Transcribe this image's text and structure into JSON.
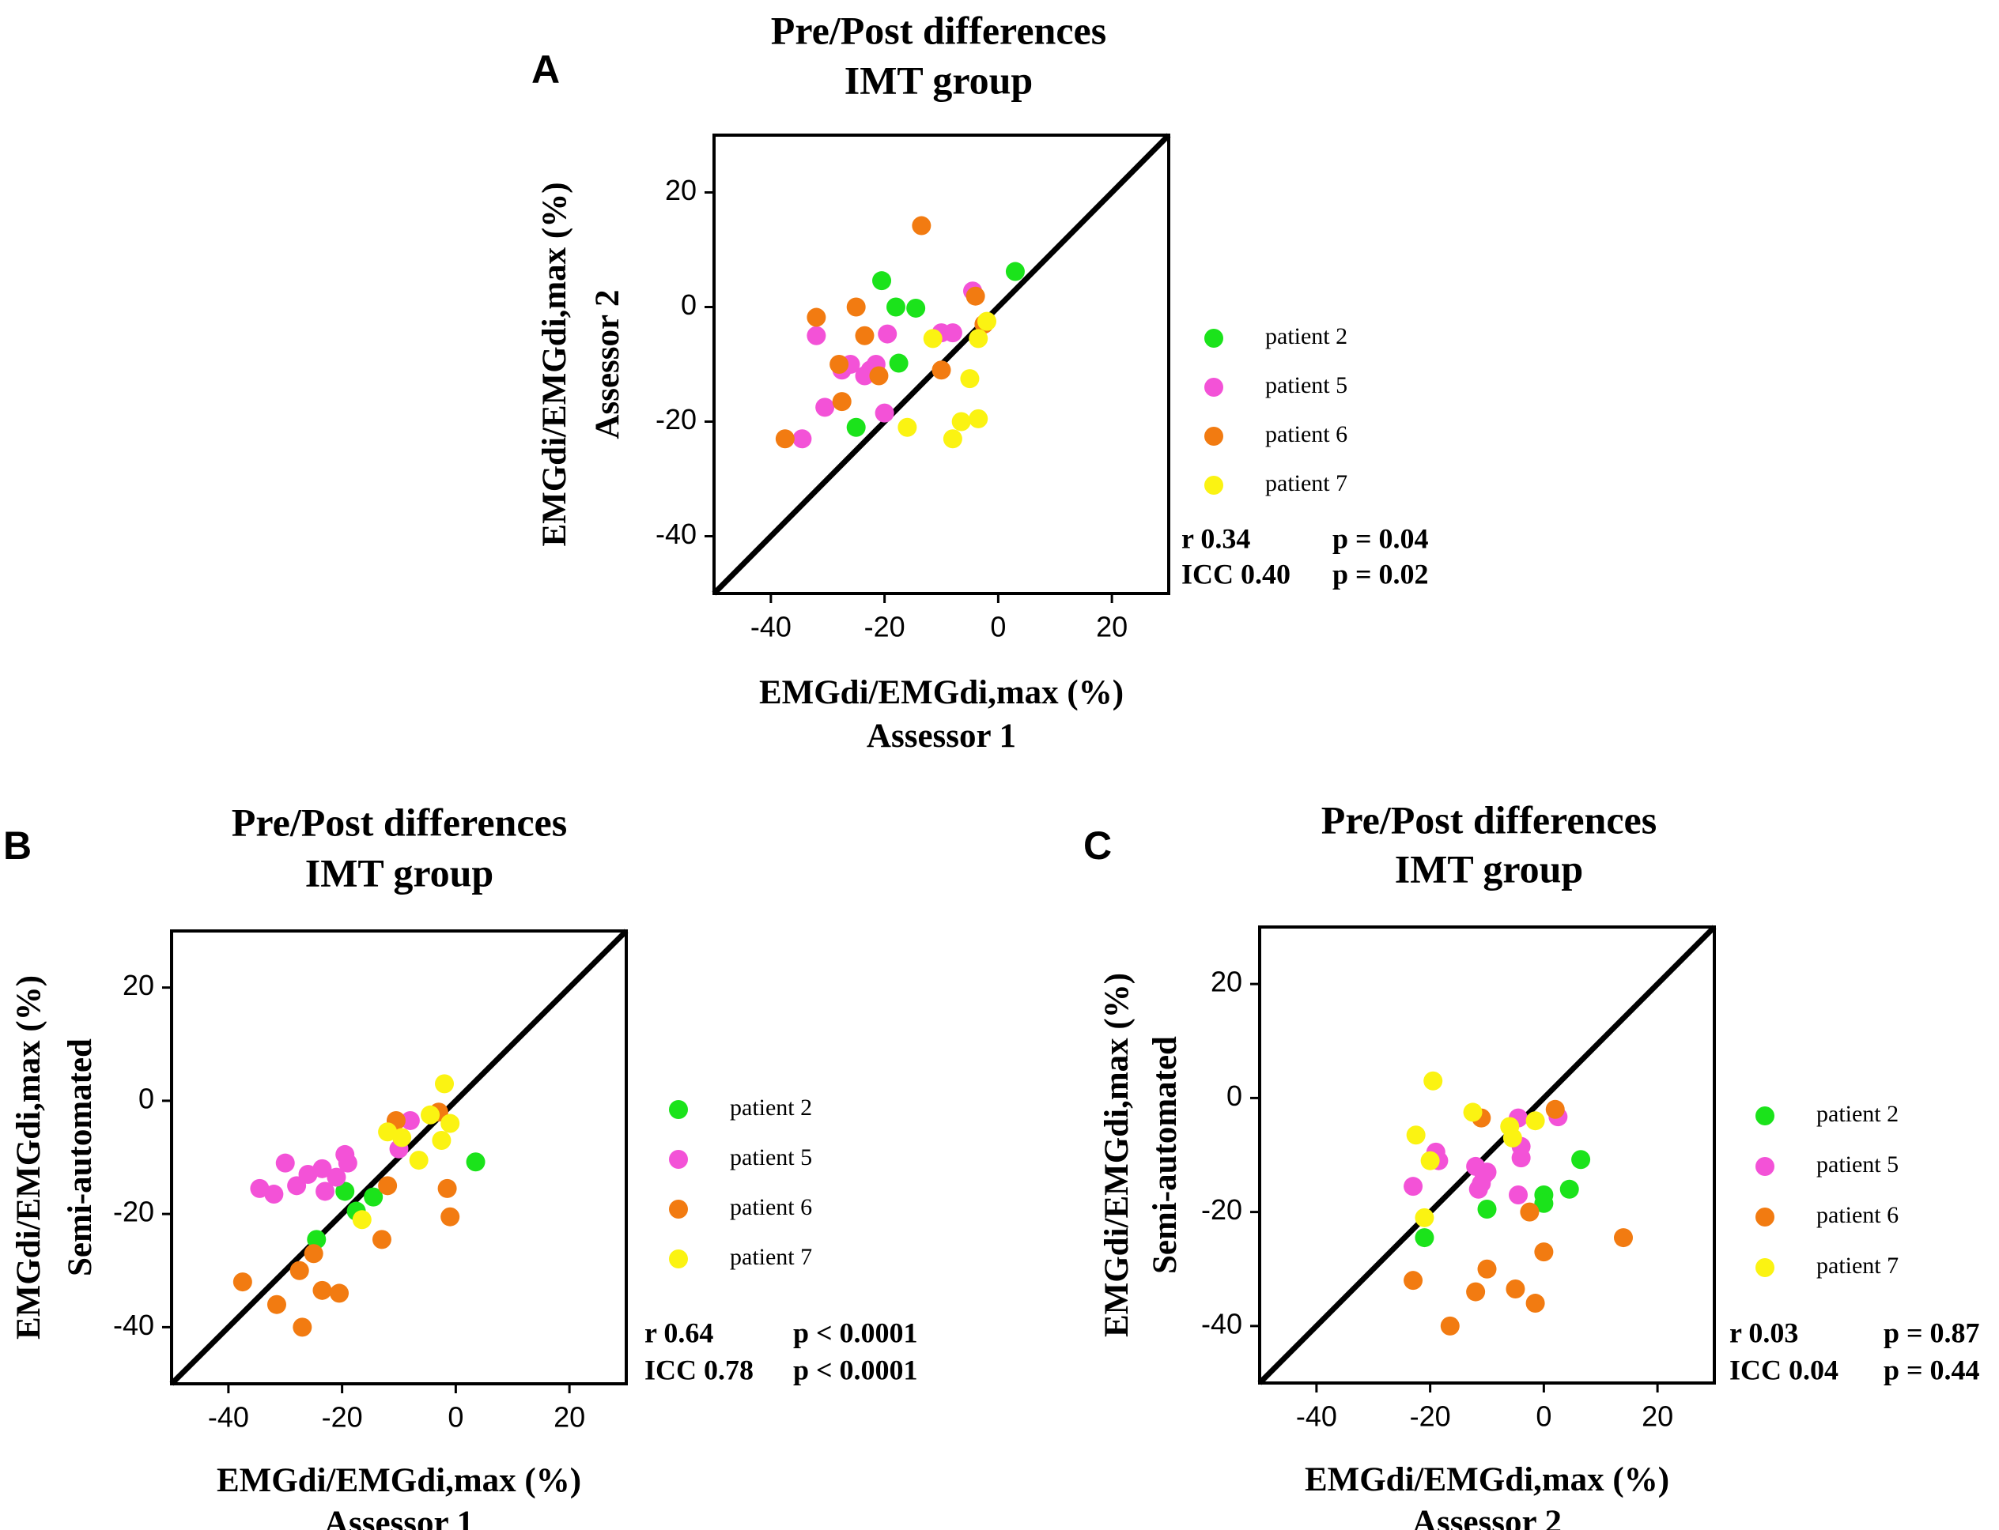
{
  "figure": {
    "colors": {
      "patient 2": "#1be31b",
      "patient 5": "#f352d7",
      "patient 6": "#f27b11",
      "patient 7": "#fbf312",
      "axis": "#000000"
    }
  },
  "chart_data": [
    {
      "panel": "A",
      "type": "scatter",
      "title": [
        "Pre/Post differences",
        "IMT group"
      ],
      "xlabel": [
        "EMGdi/EMGdi,max (%)",
        "Assessor 1"
      ],
      "ylabel": [
        "EMGdi/EMGdi,max (%)",
        "Assessor 2"
      ],
      "xlim": [
        -50,
        30
      ],
      "ylim": [
        -50,
        30
      ],
      "xticks": [
        -40,
        -20,
        0,
        20
      ],
      "yticks": [
        -40,
        -20,
        0,
        20
      ],
      "identity_line": true,
      "legend": [
        "patient 2",
        "patient 5",
        "patient 6",
        "patient 7"
      ],
      "stats": [
        {
          "label": "r 0.34",
          "p": "p = 0.04"
        },
        {
          "label": "ICC 0.40",
          "p": "p = 0.02"
        }
      ],
      "series": [
        {
          "name": "patient 2",
          "points": [
            [
              -20.5,
              4.6
            ],
            [
              -18,
              0
            ],
            [
              -14.5,
              -0.2
            ],
            [
              -17.5,
              -9.8
            ],
            [
              -25,
              -21
            ],
            [
              3,
              6.2
            ]
          ]
        },
        {
          "name": "patient 5",
          "points": [
            [
              -34.5,
              -23
            ],
            [
              -32,
              -5
            ],
            [
              -30.5,
              -17.5
            ],
            [
              -27.5,
              -11
            ],
            [
              -26,
              -10
            ],
            [
              -23.5,
              -12
            ],
            [
              -22.5,
              -11
            ],
            [
              -21.5,
              -10
            ],
            [
              -20,
              -18.5
            ],
            [
              -19.5,
              -4.7
            ],
            [
              -10,
              -4.5
            ],
            [
              -8,
              -4.5
            ],
            [
              -4.5,
              2.8
            ]
          ]
        },
        {
          "name": "patient 6",
          "points": [
            [
              -37.5,
              -23
            ],
            [
              -32,
              -1.8
            ],
            [
              -28,
              -10
            ],
            [
              -27.5,
              -16.5
            ],
            [
              -25,
              0
            ],
            [
              -23.5,
              -5
            ],
            [
              -21,
              -12
            ],
            [
              -13.5,
              14.2
            ],
            [
              -10,
              -11
            ],
            [
              -4,
              1.9
            ],
            [
              -2.5,
              -3
            ]
          ]
        },
        {
          "name": "patient 7",
          "points": [
            [
              -16,
              -21
            ],
            [
              -11.5,
              -5.5
            ],
            [
              -8,
              -23
            ],
            [
              -6.5,
              -20
            ],
            [
              -5,
              -12.5
            ],
            [
              -3.5,
              -19.5
            ],
            [
              -3.5,
              -5.5
            ],
            [
              -2,
              -2.5
            ]
          ]
        }
      ]
    },
    {
      "panel": "B",
      "type": "scatter",
      "title": [
        "Pre/Post differences",
        "IMT group"
      ],
      "xlabel": [
        "EMGdi/EMGdi,max (%)",
        "Assessor 1"
      ],
      "ylabel": [
        "EMGdi/EMGdi,max (%)",
        "Semi-automated"
      ],
      "xlim": [
        -50,
        30
      ],
      "ylim": [
        -50,
        30
      ],
      "xticks": [
        -40,
        -20,
        0,
        20
      ],
      "yticks": [
        -40,
        -20,
        0,
        20
      ],
      "identity_line": true,
      "legend": [
        "patient 2",
        "patient 5",
        "patient 6",
        "patient 7"
      ],
      "stats": [
        {
          "label": "r 0.64",
          "p": "p < 0.0001"
        },
        {
          "label": "ICC 0.78",
          "p": "p < 0.0001"
        }
      ],
      "series": [
        {
          "name": "patient 2",
          "points": [
            [
              -24.5,
              -24.5
            ],
            [
              -19.5,
              -16
            ],
            [
              -17.5,
              -19.5
            ],
            [
              -14.5,
              -17
            ],
            [
              3.5,
              -10.8
            ]
          ]
        },
        {
          "name": "patient 5",
          "points": [
            [
              -34.5,
              -15.5
            ],
            [
              -32,
              -16.5
            ],
            [
              -30,
              -11
            ],
            [
              -28,
              -15
            ],
            [
              -26,
              -13
            ],
            [
              -23.5,
              -12
            ],
            [
              -23,
              -16
            ],
            [
              -21,
              -13.5
            ],
            [
              -19.5,
              -9.5
            ],
            [
              -19,
              -11
            ],
            [
              -10,
              -8.5
            ],
            [
              -8,
              -3.5
            ]
          ]
        },
        {
          "name": "patient 6",
          "points": [
            [
              -37.5,
              -32
            ],
            [
              -31.5,
              -36
            ],
            [
              -27.5,
              -30
            ],
            [
              -27,
              -40
            ],
            [
              -25,
              -27
            ],
            [
              -23.5,
              -33.5
            ],
            [
              -20.5,
              -34
            ],
            [
              -13,
              -24.5
            ],
            [
              -12,
              -15
            ],
            [
              -10.5,
              -3.5
            ],
            [
              -1.5,
              -15.5
            ],
            [
              -1,
              -20.5
            ],
            [
              -3,
              -2
            ]
          ]
        },
        {
          "name": "patient 7",
          "points": [
            [
              -16.5,
              -21
            ],
            [
              -12,
              -5.5
            ],
            [
              -9.5,
              -6.5
            ],
            [
              -6.5,
              -10.5
            ],
            [
              -4.5,
              -2.5
            ],
            [
              -2.5,
              -7
            ],
            [
              -2,
              3
            ],
            [
              -1,
              -4
            ]
          ]
        }
      ]
    },
    {
      "panel": "C",
      "type": "scatter",
      "title": [
        "Pre/Post differences",
        "IMT group"
      ],
      "xlabel": [
        "EMGdi/EMGdi,max (%)",
        "Assessor 2"
      ],
      "ylabel": [
        "EMGdi/EMGdi,max (%)",
        "Semi-automated"
      ],
      "xlim": [
        -50,
        30
      ],
      "ylim": [
        -50,
        30
      ],
      "xticks": [
        -40,
        -20,
        0,
        20
      ],
      "yticks": [
        -40,
        -20,
        0,
        20
      ],
      "identity_line": true,
      "legend": [
        "patient 2",
        "patient 5",
        "patient 6",
        "patient 7"
      ],
      "stats": [
        {
          "label": "r 0.03",
          "p": "p = 0.87"
        },
        {
          "label": "ICC 0.04",
          "p": "p = 0.44"
        }
      ],
      "series": [
        {
          "name": "patient 2",
          "points": [
            [
              -21,
              -24.5
            ],
            [
              -10,
              -19.5
            ],
            [
              0,
              -17
            ],
            [
              0,
              -18.5
            ],
            [
              4.5,
              -16
            ],
            [
              6.5,
              -10.8
            ]
          ]
        },
        {
          "name": "patient 5",
          "points": [
            [
              -23,
              -15.5
            ],
            [
              -19,
              -9.5
            ],
            [
              -18.5,
              -11
            ],
            [
              -12,
              -12
            ],
            [
              -11.5,
              -16
            ],
            [
              -11,
              -15
            ],
            [
              -10.5,
              -13.5
            ],
            [
              -10,
              -13
            ],
            [
              -4.5,
              -17
            ],
            [
              -4.5,
              -3.5
            ],
            [
              -4,
              -8.5
            ],
            [
              -4,
              -10.5
            ],
            [
              2.5,
              -3.3
            ]
          ]
        },
        {
          "name": "patient 6",
          "points": [
            [
              -23,
              -32
            ],
            [
              -16.5,
              -40
            ],
            [
              -12,
              -34
            ],
            [
              -11,
              -3.5
            ],
            [
              -10,
              -30
            ],
            [
              -5,
              -33.5
            ],
            [
              -2.5,
              -20
            ],
            [
              -1.5,
              -36
            ],
            [
              0,
              -27
            ],
            [
              2,
              -2
            ],
            [
              14,
              -24.5
            ]
          ]
        },
        {
          "name": "patient 7",
          "points": [
            [
              -22.5,
              -6.5
            ],
            [
              -21,
              -21
            ],
            [
              -20,
              -11
            ],
            [
              -19.5,
              3
            ],
            [
              -12.5,
              -2.5
            ],
            [
              -6,
              -5
            ],
            [
              -5.5,
              -7
            ],
            [
              -1.5,
              -4
            ]
          ]
        }
      ]
    }
  ]
}
